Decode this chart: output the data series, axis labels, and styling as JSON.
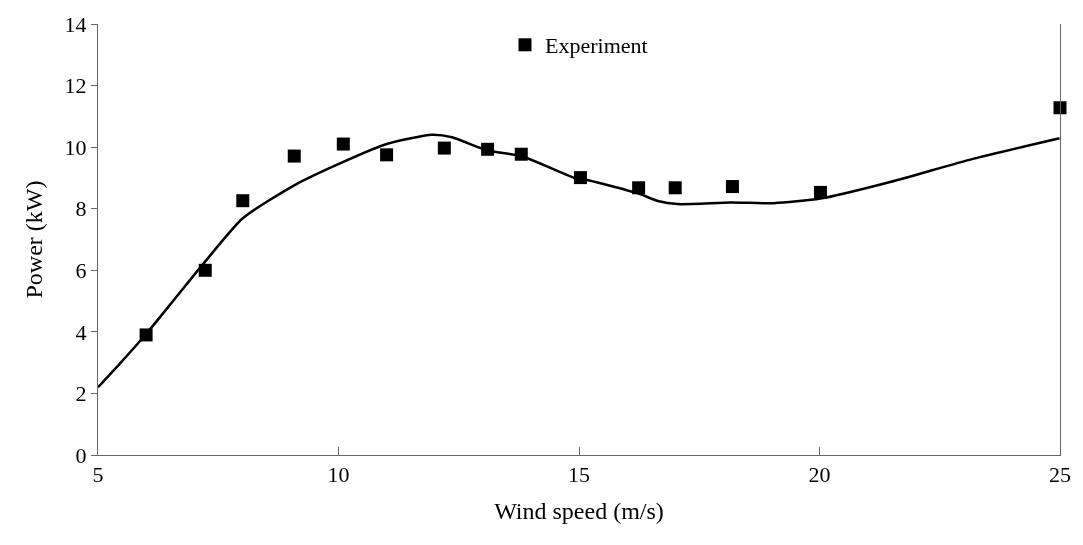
{
  "chart_data": {
    "type": "scatter",
    "xlabel": "Wind speed (m/s)",
    "ylabel": "Power (kW)",
    "xlim": [
      5,
      25
    ],
    "xticks": [
      5,
      10,
      15,
      20,
      25
    ],
    "ylim": [
      0,
      14
    ],
    "yticks": [
      0,
      2,
      4,
      6,
      8,
      10,
      12,
      14
    ],
    "legend": "top",
    "series": [
      {
        "name": "Experiment",
        "marker": "square",
        "color": "#000000",
        "x": [
          6.0,
          7.23,
          8.01,
          9.08,
          10.1,
          11.0,
          12.2,
          13.1,
          13.8,
          15.03,
          16.24,
          17.0,
          18.19,
          20.02,
          25.0
        ],
        "values": [
          3.9,
          6.0,
          8.26,
          9.71,
          10.1,
          9.75,
          9.97,
          9.93,
          9.77,
          9.01,
          8.68,
          8.68,
          8.72,
          8.53,
          11.28
        ]
      },
      {
        "type": "line",
        "marker": "none",
        "color": "#000000",
        "line_style": "solid",
        "x": [
          5.0,
          5.45,
          6.0,
          6.56,
          7.23,
          8.01,
          9.08,
          10.1,
          11.0,
          11.94,
          12.36,
          13.1,
          13.8,
          14.94,
          15.03,
          16.24,
          16.64,
          17.05,
          18.15,
          19.05,
          20.02,
          21.47,
          23.19,
          24.99
        ],
        "values": [
          2.2,
          2.96,
          3.93,
          5.0,
          6.29,
          7.69,
          8.76,
          9.52,
          10.1,
          10.4,
          10.32,
          9.89,
          9.71,
          8.98,
          8.98,
          8.49,
          8.25,
          8.15,
          8.2,
          8.18,
          8.33,
          8.87,
          9.62,
          10.29
        ]
      }
    ]
  }
}
